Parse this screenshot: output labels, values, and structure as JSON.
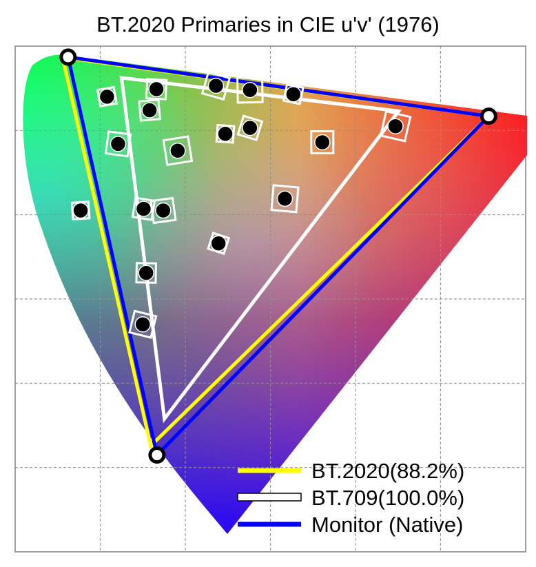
{
  "chart_data": {
    "type": "scatter",
    "title": "BT.2020 Primaries in CIE u'v' (1976)",
    "xlabel": "",
    "ylabel": "",
    "grid": true,
    "legend_position": "bottom-right",
    "primaries": {
      "BT.2020": [
        [
          0.0556,
          0.5868
        ],
        [
          0.5566,
          0.5169
        ],
        [
          0.1593,
          0.1258
        ]
      ],
      "BT.709": [
        [
          0.4507,
          0.5229
        ],
        [
          0.125,
          0.5625
        ],
        [
          0.1754,
          0.1579
        ]
      ],
      "Monitor": [
        [
          0.0622,
          0.587
        ],
        [
          0.5566,
          0.5169
        ],
        [
          0.1667,
          0.1148
        ]
      ]
    },
    "measured_points": [
      [
        0.108,
        0.54
      ],
      [
        0.166,
        0.549
      ],
      [
        0.236,
        0.553
      ],
      [
        0.276,
        0.548
      ],
      [
        0.327,
        0.543
      ],
      [
        0.158,
        0.524
      ],
      [
        0.121,
        0.484
      ],
      [
        0.191,
        0.476
      ],
      [
        0.247,
        0.496
      ],
      [
        0.276,
        0.503
      ],
      [
        0.361,
        0.486
      ],
      [
        0.447,
        0.505
      ],
      [
        0.077,
        0.405
      ],
      [
        0.151,
        0.407
      ],
      [
        0.174,
        0.405
      ],
      [
        0.317,
        0.419
      ],
      [
        0.239,
        0.366
      ],
      [
        0.154,
        0.331
      ],
      [
        0.15,
        0.27
      ]
    ],
    "series": [
      {
        "name": "BT.2020(88.2%)",
        "color": "#ffff00"
      },
      {
        "name": "BT.709(100.0%)",
        "color": "#ffffff"
      },
      {
        "name": "Monitor (Native)",
        "color": "#0000ff"
      }
    ]
  }
}
